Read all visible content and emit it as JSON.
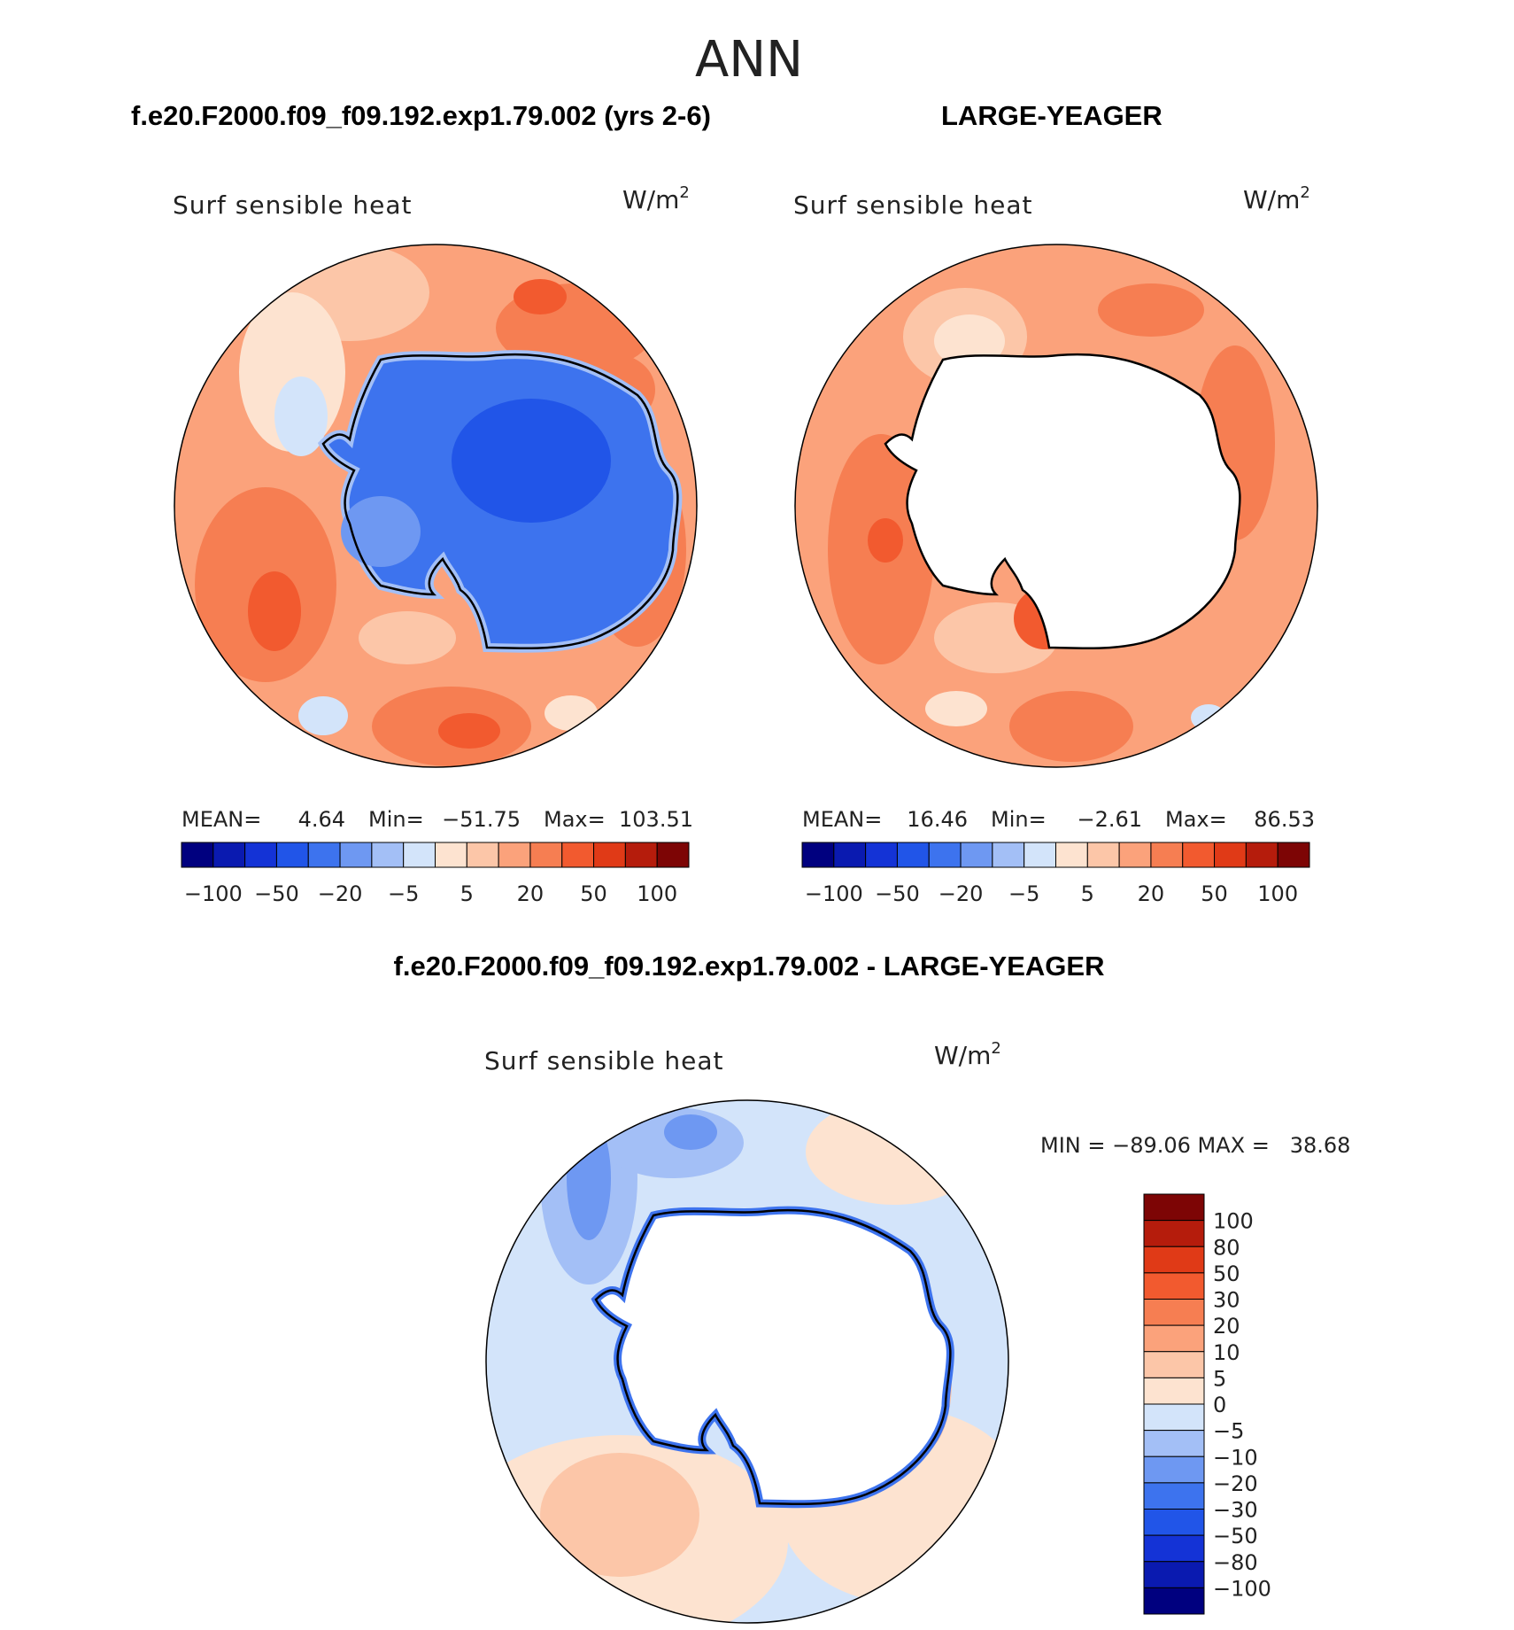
{
  "figure": {
    "title": "ANN",
    "panel_a": {
      "header": "f.e20.F2000.f09_f09.192.exp1.79.002 (yrs 2-6)",
      "label": "Surf sensible heat",
      "units": "W/m",
      "units_sup": "2",
      "stats": {
        "mean_label": "MEAN=",
        "mean": "4.64",
        "min_label": "Min=",
        "min": "−51.75",
        "max_label": "Max=",
        "max": "103.51"
      }
    },
    "panel_b": {
      "header": "LARGE-YEAGER",
      "label": "Surf sensible heat",
      "units": "W/m",
      "units_sup": "2",
      "stats": {
        "mean_label": "MEAN=",
        "mean": "16.46",
        "min_label": "Min=",
        "min": "−2.61",
        "max_label": "Max=",
        "max": "86.53"
      }
    },
    "panel_c": {
      "header": "f.e20.F2000.f09_f09.192.exp1.79.002 - LARGE-YEAGER",
      "label": "Surf sensible heat",
      "units": "W/m",
      "units_sup": "2",
      "minmax": "MIN = −89.06 MAX =   38.68"
    }
  },
  "colorbar_top": {
    "colors": [
      "#00007f",
      "#0a1ab0",
      "#1433d6",
      "#2155e8",
      "#3d73ee",
      "#6e98f2",
      "#a3bff6",
      "#d3e4fa",
      "#fde3d0",
      "#fcc6a8",
      "#fba27b",
      "#f67e52",
      "#f25a2f",
      "#e03a17",
      "#b51c0c",
      "#7d0505"
    ],
    "tick_labels": [
      "−100",
      "−50",
      "−20",
      "−5",
      "5",
      "20",
      "50",
      "100"
    ]
  },
  "colorbar_diff": {
    "colors": [
      "#00007f",
      "#0a1ab0",
      "#1433d6",
      "#2155e8",
      "#3d73ee",
      "#6e98f2",
      "#a3bff6",
      "#d3e4fa",
      "#fde3d0",
      "#fcc6a8",
      "#fba27b",
      "#f67e52",
      "#f25a2f",
      "#e03a17",
      "#b51c0c",
      "#7d0505"
    ],
    "tick_labels": [
      "100",
      "80",
      "50",
      "30",
      "20",
      "10",
      "5",
      "0",
      "−5",
      "−10",
      "−20",
      "−30",
      "−50",
      "−80",
      "−100"
    ]
  },
  "map_colors": {
    "ocean_warm_light": "#fde3d0",
    "ocean_warm_mid": "#fba27b",
    "ocean_warm_strong": "#f67e52",
    "ocean_warm_deep": "#f25a2f",
    "cool_light": "#d3e4fa",
    "cool_mid": "#a3bff6",
    "land_blue": "#3d73ee",
    "land_blue_deep": "#2155e8",
    "land_white": "#ffffff"
  }
}
